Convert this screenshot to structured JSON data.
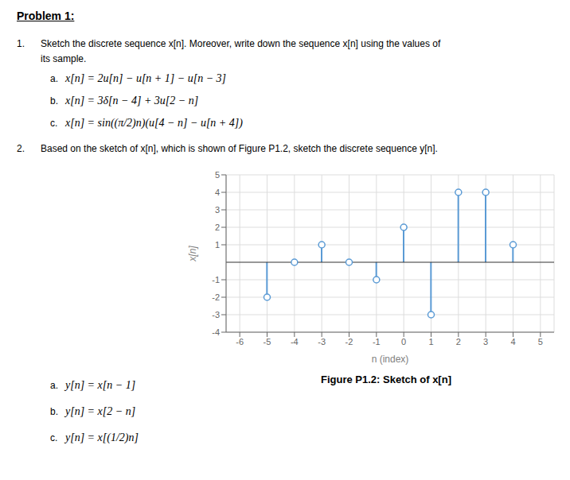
{
  "chart_data": {
    "type": "stem",
    "title": "Problem 1:",
    "x": [
      -5,
      -4,
      -3,
      -2,
      -1,
      0,
      1,
      2,
      3,
      4
    ],
    "values": [
      -2,
      0,
      1,
      0,
      -1,
      2,
      -3,
      4,
      4,
      1
    ],
    "color": "#5B9BD5",
    "xlim": [
      -6.5,
      5.5
    ],
    "xticks": [
      -6,
      -5,
      -4,
      -3,
      -2,
      -1,
      0,
      1,
      2,
      3,
      4,
      5
    ],
    "ylim": [
      -4,
      5
    ],
    "yticks": [
      -4,
      -3,
      -2,
      -1,
      1,
      2,
      3,
      4,
      5
    ],
    "xlabel": "n (index)",
    "ylabel": "x[n]",
    "grid": true,
    "annotations": [
      [
        "1.",
        "Sketch the discrete sequence x[n]. Moreover, write down the sequence x[n] using the values of"
      ],
      [
        "its sample."
      ],
      [
        "a.",
        "x[n] = 2u[n] − u[n + 1] − u[n − 3]"
      ],
      [
        "b.",
        "x[n] = 3δ[n − 4] + 3u[2 − n]"
      ],
      [
        "c.",
        "x[n] = sin((π/2)n)(u[4 − n] − u[n + 4])"
      ],
      [
        "2.",
        "Based on the sketch of x[n], which is shown of Figure P1.2, sketch the discrete sequence y[n]."
      ],
      [
        "Figure P1.2: Sketch of x[n]"
      ],
      [
        "a.",
        "y[n] = x[n − 1]"
      ],
      [
        "b.",
        "y[n] = x[2 − n]"
      ],
      [
        "c.",
        "y[n] = x[(1/2)n]"
      ]
    ]
  }
}
